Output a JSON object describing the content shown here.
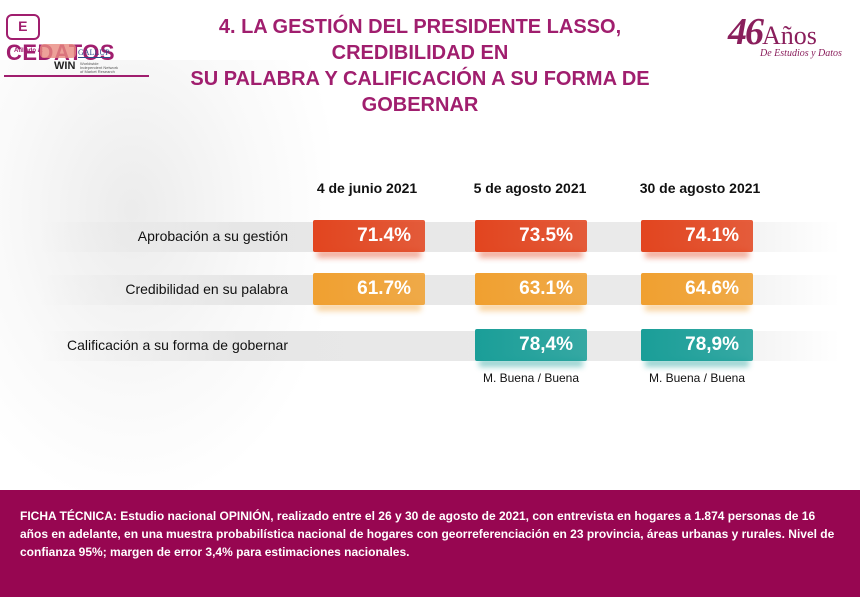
{
  "header": {
    "title_line1": "4. LA GESTIÓN DEL PRESIDENTE LASSO, CREDIBILIDAD EN",
    "title_line2": "SU PALABRA Y CALIFICACIÓN A SU FORMA DE GOBERNAR",
    "logo_left": {
      "brand": "CEDATOS",
      "mark": "E",
      "affiliated_label": "Afiliado a:",
      "partner1": "GALLUP",
      "partner2": "WIN",
      "partner2_sub": "Worldwide Independent Network of Market Research"
    },
    "logo_right": {
      "number": "46",
      "word": "Años",
      "subtitle": "De Estudios y Datos"
    }
  },
  "colors": {
    "brand": "#970651",
    "aprobacion": "#e2451f",
    "credibilidad": "#f0a030",
    "calificacion": "#1a9e98"
  },
  "chart_data": {
    "type": "table",
    "title": "4. LA GESTIÓN DEL PRESIDENTE LASSO, CREDIBILIDAD EN SU PALABRA Y CALIFICACIÓN A SU FORMA DE GOBERNAR",
    "columns": [
      "4 de junio 2021",
      "5 de agosto 2021",
      "30 de agosto 2021"
    ],
    "rows": [
      {
        "label": "Aprobación a su gestión",
        "values": [
          "71.4%",
          "73.5%",
          "74.1%"
        ],
        "numeric": [
          71.4,
          73.5,
          74.1
        ],
        "color": "#e2451f"
      },
      {
        "label": "Credibilidad en su palabra",
        "values": [
          "61.7%",
          "63.1%",
          "64.6%"
        ],
        "numeric": [
          61.7,
          63.1,
          64.6
        ],
        "color": "#f0a030"
      },
      {
        "label": "Calificación a su forma de gobernar",
        "values": [
          null,
          "78,4%",
          "78,9%"
        ],
        "numeric": [
          null,
          78.4,
          78.9
        ],
        "color": "#1a9e98",
        "sublabels": [
          null,
          "M. Buena / Buena",
          "M. Buena / Buena"
        ]
      }
    ]
  },
  "footer": {
    "text": "FICHA TÉCNICA: Estudio nacional OPINIÓN, realizado entre el 26 y 30  de agosto de 2021, con entrevista en hogares a 1.874 personas de 16 años en adelante, en una muestra probabilística nacional de hogares con georreferenciación en 23 provincia, áreas urbanas y rurales. Nivel de confianza 95%; margen de error 3,4% para estimaciones nacionales."
  }
}
